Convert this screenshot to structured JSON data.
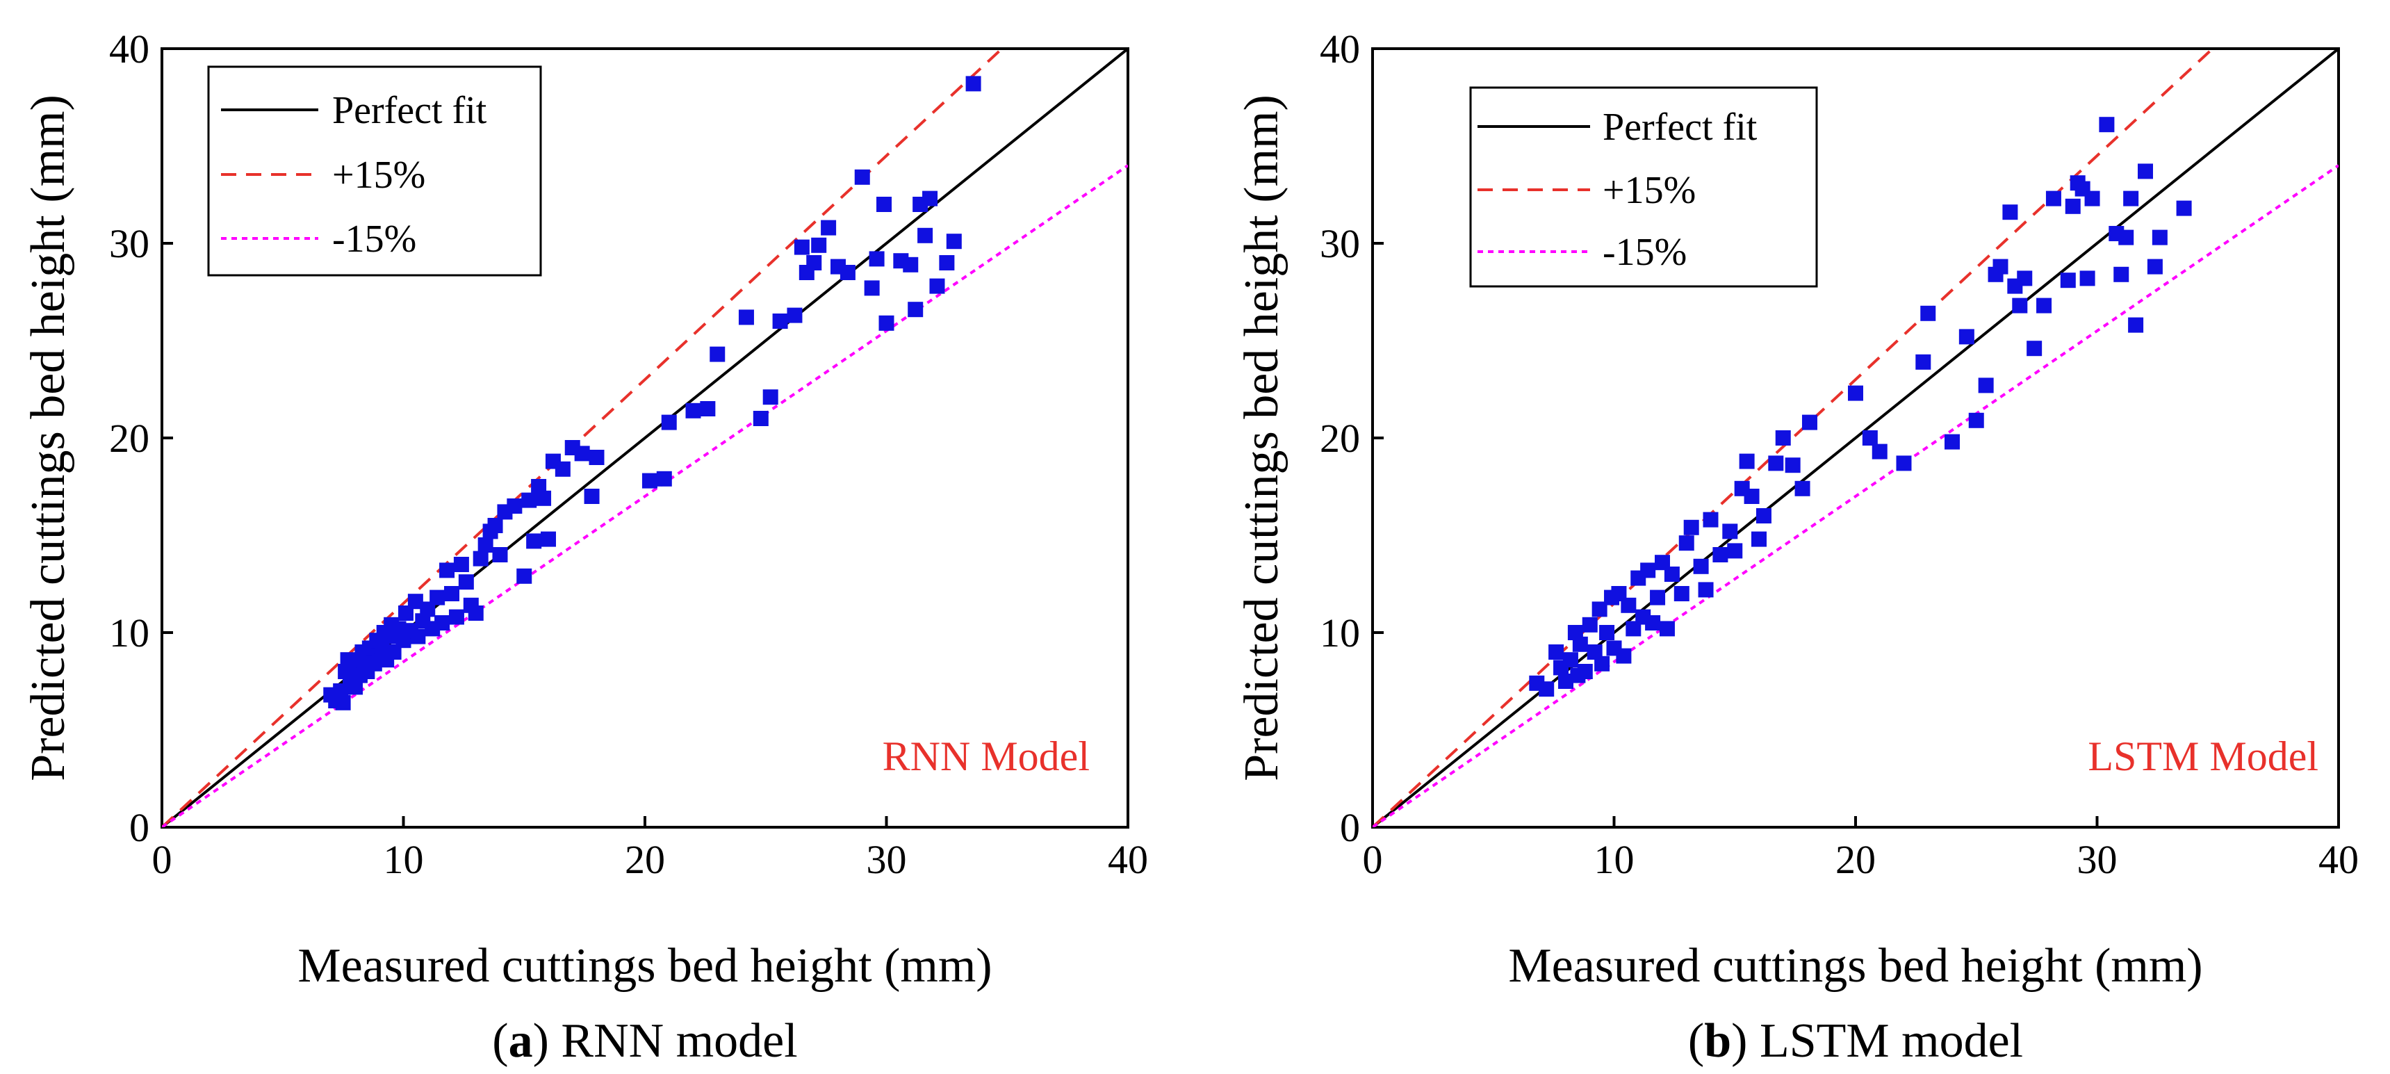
{
  "chart_data": [
    {
      "type": "scatter",
      "title": "",
      "model_label": "RNN Model",
      "caption_letter": "a",
      "caption_text": "RNN model",
      "xlabel": "Measured cuttings bed height (mm)",
      "ylabel": "Predicted cuttings bed height (mm)",
      "xlim": [
        0,
        40
      ],
      "ylim": [
        0,
        40
      ],
      "xticks": [
        0,
        10,
        20,
        30,
        40
      ],
      "yticks": [
        0,
        10,
        20,
        30,
        40
      ],
      "grid": false,
      "legend_position": "top-left",
      "lines": [
        {
          "name": "Perfect fit",
          "slope": 1.0,
          "style": "solid",
          "color": "#000000"
        },
        {
          "name": "+15%",
          "slope": 1.15,
          "style": "dashed",
          "color": "#e8312b"
        },
        {
          "name": "-15%",
          "slope": 0.85,
          "style": "dotted",
          "color": "#ff00ff"
        }
      ],
      "marker_color": "#1010e0",
      "points": [
        [
          7.0,
          6.8
        ],
        [
          7.2,
          6.5
        ],
        [
          7.4,
          7.0
        ],
        [
          7.5,
          6.4
        ],
        [
          7.6,
          8.0
        ],
        [
          7.7,
          8.6
        ],
        [
          7.8,
          7.5
        ],
        [
          8.0,
          7.2
        ],
        [
          8.1,
          8.3
        ],
        [
          8.2,
          7.8
        ],
        [
          8.3,
          9.0
        ],
        [
          8.4,
          8.5
        ],
        [
          8.5,
          8.0
        ],
        [
          8.6,
          9.2
        ],
        [
          8.8,
          8.4
        ],
        [
          8.9,
          9.6
        ],
        [
          9.0,
          8.8
        ],
        [
          9.1,
          9.3
        ],
        [
          9.2,
          10.0
        ],
        [
          9.3,
          8.6
        ],
        [
          9.4,
          9.8
        ],
        [
          9.5,
          10.4
        ],
        [
          9.6,
          9.0
        ],
        [
          9.8,
          10.2
        ],
        [
          10.0,
          9.6
        ],
        [
          10.1,
          11.0
        ],
        [
          10.3,
          10.1
        ],
        [
          10.5,
          11.6
        ],
        [
          10.6,
          9.8
        ],
        [
          10.8,
          10.6
        ],
        [
          11.0,
          11.2
        ],
        [
          11.2,
          10.2
        ],
        [
          11.4,
          11.8
        ],
        [
          11.6,
          10.5
        ],
        [
          11.8,
          13.2
        ],
        [
          12.0,
          12.0
        ],
        [
          12.2,
          10.8
        ],
        [
          12.4,
          13.5
        ],
        [
          12.6,
          12.6
        ],
        [
          12.8,
          11.4
        ],
        [
          13.0,
          11.0
        ],
        [
          13.2,
          13.8
        ],
        [
          13.4,
          14.5
        ],
        [
          13.6,
          15.2
        ],
        [
          13.8,
          15.5
        ],
        [
          14.0,
          14.0
        ],
        [
          14.2,
          16.2
        ],
        [
          14.6,
          16.5
        ],
        [
          15.0,
          12.9
        ],
        [
          15.2,
          16.8
        ],
        [
          15.4,
          14.7
        ],
        [
          15.6,
          17.5
        ],
        [
          15.8,
          16.9
        ],
        [
          16.0,
          14.8
        ],
        [
          16.2,
          18.8
        ],
        [
          16.6,
          18.4
        ],
        [
          17.0,
          19.5
        ],
        [
          17.4,
          19.2
        ],
        [
          17.8,
          17.0
        ],
        [
          18.0,
          19.0
        ],
        [
          20.2,
          17.8
        ],
        [
          20.8,
          17.9
        ],
        [
          21.0,
          20.8
        ],
        [
          22.0,
          21.4
        ],
        [
          22.6,
          21.5
        ],
        [
          23.0,
          24.3
        ],
        [
          24.2,
          26.2
        ],
        [
          24.8,
          21.0
        ],
        [
          25.2,
          22.1
        ],
        [
          25.6,
          26.0
        ],
        [
          26.2,
          26.3
        ],
        [
          26.5,
          29.8
        ],
        [
          26.7,
          28.5
        ],
        [
          27.0,
          29.0
        ],
        [
          27.2,
          29.9
        ],
        [
          27.6,
          30.8
        ],
        [
          28.0,
          28.8
        ],
        [
          28.4,
          28.5
        ],
        [
          29.0,
          33.4
        ],
        [
          29.4,
          27.7
        ],
        [
          29.6,
          29.2
        ],
        [
          29.9,
          32.0
        ],
        [
          30.0,
          25.9
        ],
        [
          30.6,
          29.1
        ],
        [
          31.0,
          28.9
        ],
        [
          31.2,
          26.6
        ],
        [
          31.4,
          32.0
        ],
        [
          31.6,
          30.4
        ],
        [
          31.8,
          32.3
        ],
        [
          32.1,
          27.8
        ],
        [
          32.5,
          29.0
        ],
        [
          32.8,
          30.1
        ],
        [
          33.6,
          38.2
        ]
      ]
    },
    {
      "type": "scatter",
      "title": "",
      "model_label": "LSTM Model",
      "caption_letter": "b",
      "caption_text": "LSTM model",
      "xlabel": "Measured cuttings bed height (mm)",
      "ylabel": "Predicted cuttings bed height (mm)",
      "xlim": [
        0,
        40
      ],
      "ylim": [
        0,
        40
      ],
      "xticks": [
        0,
        10,
        20,
        30,
        40
      ],
      "yticks": [
        0,
        10,
        20,
        30,
        40
      ],
      "grid": false,
      "legend_position": "top-left",
      "lines": [
        {
          "name": "Perfect fit",
          "slope": 1.0,
          "style": "solid",
          "color": "#000000"
        },
        {
          "name": "+15%",
          "slope": 1.15,
          "style": "dashed",
          "color": "#e8312b"
        },
        {
          "name": "-15%",
          "slope": 0.85,
          "style": "dotted",
          "color": "#ff00ff"
        }
      ],
      "marker_color": "#1010e0",
      "points": [
        [
          6.8,
          7.4
        ],
        [
          7.2,
          7.1
        ],
        [
          7.6,
          9.0
        ],
        [
          7.8,
          8.2
        ],
        [
          8.0,
          7.5
        ],
        [
          8.2,
          8.6
        ],
        [
          8.4,
          10.0
        ],
        [
          8.5,
          7.8
        ],
        [
          8.6,
          9.4
        ],
        [
          8.8,
          8.0
        ],
        [
          9.0,
          10.4
        ],
        [
          9.2,
          9.0
        ],
        [
          9.4,
          11.2
        ],
        [
          9.5,
          8.4
        ],
        [
          9.7,
          10.0
        ],
        [
          9.9,
          11.8
        ],
        [
          10.0,
          9.2
        ],
        [
          10.2,
          12.0
        ],
        [
          10.4,
          8.8
        ],
        [
          10.6,
          11.4
        ],
        [
          10.8,
          10.2
        ],
        [
          11.0,
          12.8
        ],
        [
          11.2,
          10.8
        ],
        [
          11.4,
          13.2
        ],
        [
          11.6,
          10.5
        ],
        [
          11.8,
          11.8
        ],
        [
          12.0,
          13.6
        ],
        [
          12.2,
          10.2
        ],
        [
          12.4,
          13.0
        ],
        [
          12.8,
          12.0
        ],
        [
          13.0,
          14.6
        ],
        [
          13.2,
          15.4
        ],
        [
          13.6,
          13.4
        ],
        [
          13.8,
          12.2
        ],
        [
          14.0,
          15.8
        ],
        [
          14.4,
          14.0
        ],
        [
          14.8,
          15.2
        ],
        [
          15.0,
          14.2
        ],
        [
          15.3,
          17.4
        ],
        [
          15.5,
          18.8
        ],
        [
          15.7,
          17.0
        ],
        [
          16.0,
          14.8
        ],
        [
          16.2,
          16.0
        ],
        [
          16.7,
          18.7
        ],
        [
          17.0,
          20.0
        ],
        [
          17.4,
          18.6
        ],
        [
          17.8,
          17.4
        ],
        [
          18.1,
          20.8
        ],
        [
          20.0,
          22.3
        ],
        [
          20.6,
          20.0
        ],
        [
          21.0,
          19.3
        ],
        [
          22.0,
          18.7
        ],
        [
          22.8,
          23.9
        ],
        [
          23.0,
          26.4
        ],
        [
          24.0,
          19.8
        ],
        [
          24.6,
          25.2
        ],
        [
          25.0,
          20.9
        ],
        [
          25.4,
          22.7
        ],
        [
          25.8,
          28.4
        ],
        [
          26.0,
          28.8
        ],
        [
          26.4,
          31.6
        ],
        [
          26.6,
          27.8
        ],
        [
          26.8,
          26.8
        ],
        [
          27.0,
          28.2
        ],
        [
          27.4,
          24.6
        ],
        [
          27.8,
          26.8
        ],
        [
          28.2,
          32.3
        ],
        [
          28.8,
          28.1
        ],
        [
          29.0,
          31.9
        ],
        [
          29.2,
          33.1
        ],
        [
          29.4,
          32.8
        ],
        [
          29.6,
          28.2
        ],
        [
          29.8,
          32.3
        ],
        [
          30.4,
          36.1
        ],
        [
          30.8,
          30.5
        ],
        [
          31.0,
          28.4
        ],
        [
          31.2,
          30.3
        ],
        [
          31.4,
          32.3
        ],
        [
          31.6,
          25.8
        ],
        [
          32.0,
          33.7
        ],
        [
          32.4,
          28.8
        ],
        [
          32.6,
          30.3
        ],
        [
          33.6,
          31.8
        ]
      ]
    }
  ]
}
